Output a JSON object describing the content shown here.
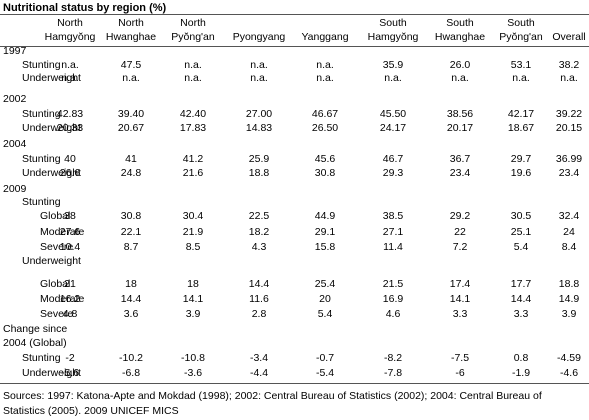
{
  "title": "Nutritional status by region (%)",
  "columns": [
    [
      "North",
      "Hamgyŏng"
    ],
    [
      "North",
      "Hwanghae"
    ],
    [
      "North",
      "Pyŏng'an"
    ],
    [
      "",
      "Pyongyang"
    ],
    [
      "",
      "Yanggang"
    ],
    [
      "South",
      "Hamgyŏng"
    ],
    [
      "South",
      "Hwanghae"
    ],
    [
      "South",
      "Pyŏng'an"
    ],
    [
      "",
      "Overall"
    ]
  ],
  "rows": [
    {
      "label": "1997",
      "values": []
    },
    {
      "label": "Stunting",
      "values": [
        "n.a.",
        "47.5",
        "n.a.",
        "n.a.",
        "n.a.",
        "35.9",
        "26.0",
        "53.1",
        "38.2"
      ]
    },
    {
      "label": "Underweight",
      "values": [
        "n.a.",
        "n.a.",
        "n.a.",
        "n.a.",
        "n.a.",
        "n.a.",
        "n.a.",
        "n.a.",
        "n.a."
      ]
    },
    {
      "label": "2002",
      "values": []
    },
    {
      "label": "Stunting",
      "values": [
        "42.83",
        "39.40",
        "42.40",
        "27.00",
        "46.67",
        "45.50",
        "38.56",
        "42.17",
        "39.22"
      ]
    },
    {
      "label": "Underweight",
      "values": [
        "20.33",
        "20.67",
        "17.83",
        "14.83",
        "26.50",
        "24.17",
        "20.17",
        "18.67",
        "20.15"
      ]
    },
    {
      "label": "2004",
      "values": []
    },
    {
      "label": "Stunting",
      "values": [
        "40",
        "41",
        "41.2",
        "25.9",
        "45.6",
        "46.7",
        "36.7",
        "29.7",
        "36.99"
      ]
    },
    {
      "label": "Underweight",
      "values": [
        "26.6",
        "24.8",
        "21.6",
        "18.8",
        "30.8",
        "29.3",
        "23.4",
        "19.6",
        "23.4"
      ]
    },
    {
      "label": "2009",
      "values": []
    },
    {
      "label": "Stunting",
      "values": []
    },
    {
      "label": "Global",
      "values": [
        "38",
        "30.8",
        "30.4",
        "22.5",
        "44.9",
        "38.5",
        "29.2",
        "30.5",
        "32.4"
      ]
    },
    {
      "label": "Moderate",
      "values": [
        "27.6",
        "22.1",
        "21.9",
        "18.2",
        "29.1",
        "27.1",
        "22",
        "25.1",
        "24"
      ]
    },
    {
      "label": "Severe",
      "values": [
        "10.4",
        "8.7",
        "8.5",
        "4.3",
        "15.8",
        "11.4",
        "7.2",
        "5.4",
        "8.4"
      ]
    },
    {
      "label": "Underweight",
      "values": []
    },
    {
      "label": "Global",
      "values": [
        "21",
        "18",
        "18",
        "14.4",
        "25.4",
        "21.5",
        "17.4",
        "17.7",
        "18.8"
      ]
    },
    {
      "label": "Moderate",
      "values": [
        "16.2",
        "14.4",
        "14.1",
        "11.6",
        "20",
        "16.9",
        "14.1",
        "14.4",
        "14.9"
      ]
    },
    {
      "label": "Severe",
      "values": [
        "4.8",
        "3.6",
        "3.9",
        "2.8",
        "5.4",
        "4.6",
        "3.3",
        "3.3",
        "3.9"
      ]
    },
    {
      "label": "Change since",
      "values": []
    },
    {
      "label": "2004 (Global)",
      "values": []
    },
    {
      "label": "Stunting",
      "values": [
        "-2",
        "-10.2",
        "-10.8",
        "-3.4",
        "-0.7",
        "-8.2",
        "-7.5",
        "0.8",
        "-4.59"
      ]
    },
    {
      "label": "Underweight",
      "values": [
        "-5.6",
        "-6.8",
        "-3.6",
        "-4.4",
        "-5.4",
        "-7.8",
        "-6",
        "-1.9",
        "-4.6"
      ]
    }
  ],
  "sources": "Sources: 1997: Katona-Apte and Mokdad (1998); 2002: Central Bureau of Statistics (2002); 2004: Central Bureau of Statistics (2005). 2009 UNICEF MICS"
}
